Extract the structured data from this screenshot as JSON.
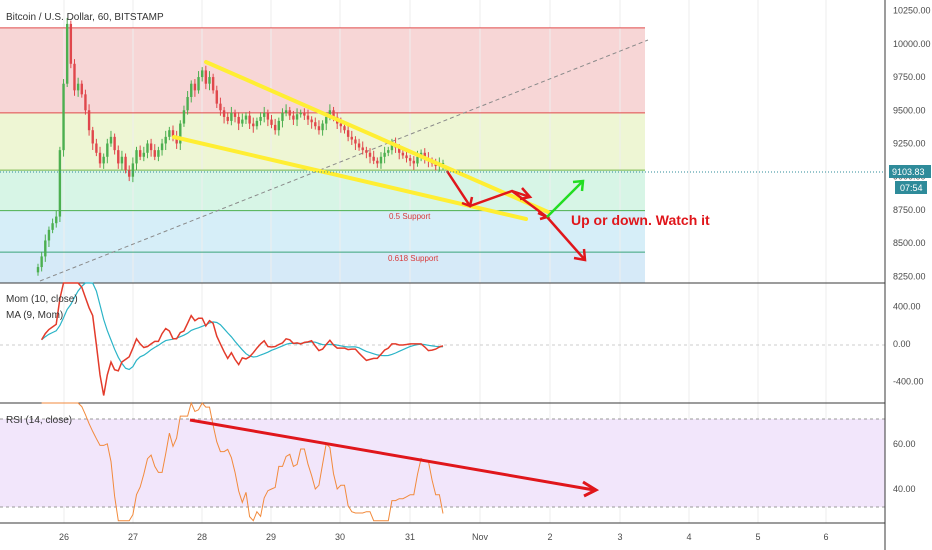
{
  "chart_data": [
    {
      "type": "candlestick",
      "title": "Bitcoin / U.S. Dollar, 60, BITSTAMP",
      "x_tick_labels": [
        "26",
        "27",
        "28",
        "29",
        "30",
        "31",
        "Nov",
        "2",
        "3",
        "4",
        "5",
        "6"
      ],
      "y_tick_labels": [
        "10250.00",
        "10000.00",
        "9750.00",
        "9500.00",
        "9250.00",
        "9000.00",
        "8750.00",
        "8500.00",
        "8250.00"
      ],
      "ylim": [
        8200,
        10330
      ],
      "last_price": "9103.83",
      "countdown": "07:54",
      "fib_levels": [
        {
          "label": "",
          "value": 10120,
          "color": "#e04a4a"
        },
        {
          "label": "",
          "value": 9480,
          "color": "#e04a4a"
        },
        {
          "label": "",
          "value": 9050,
          "color": "#7ab648"
        },
        {
          "label": "0.5 Support",
          "value": 8745,
          "color": "#4caf50"
        },
        {
          "label": "0.618 Support",
          "value": 8432,
          "color": "#3aa57a"
        }
      ],
      "annotation": "Up or down. Watch it",
      "close_series": [
        8320,
        8400,
        8520,
        8600,
        8650,
        8700,
        9200,
        9700,
        10150,
        9850,
        9650,
        9700,
        9620,
        9500,
        9350,
        9250,
        9180,
        9100,
        9150,
        9250,
        9300,
        9200,
        9100,
        9150,
        9050,
        9000,
        9100,
        9200,
        9150,
        9180,
        9250,
        9200,
        9150,
        9200,
        9250,
        9300,
        9350,
        9300,
        9250,
        9400,
        9500,
        9600,
        9700,
        9650,
        9750,
        9800,
        9700,
        9750,
        9650,
        9550,
        9500,
        9450,
        9420,
        9480,
        9450,
        9400,
        9430,
        9460,
        9400,
        9380,
        9420,
        9450,
        9480,
        9430,
        9390,
        9350,
        9420,
        9480,
        9500,
        9460,
        9430,
        9470,
        9480,
        9460,
        9430,
        9410,
        9380,
        9350,
        9400,
        9450,
        9500,
        9450,
        9400,
        9380,
        9350,
        9300,
        9280,
        9250,
        9220,
        9200,
        9180,
        9150,
        9120,
        9100,
        9150,
        9180,
        9200,
        9250,
        9220,
        9180,
        9160,
        9140,
        9120,
        9100,
        9150,
        9180,
        9140,
        9120,
        9100,
        9080,
        9100,
        9103
      ]
    },
    {
      "type": "line",
      "label": "Mom (10, close)",
      "label2": "MA (9, Mom)",
      "y_tick_labels": [
        "400.00",
        "0.00",
        "-400.00"
      ],
      "ylim": [
        -630,
        650
      ]
    },
    {
      "type": "line",
      "label": "RSI (14, close)",
      "y_tick_labels": [
        "60.00",
        "40.00"
      ],
      "ylim": [
        25,
        78
      ],
      "bands": [
        70,
        30
      ]
    }
  ]
}
